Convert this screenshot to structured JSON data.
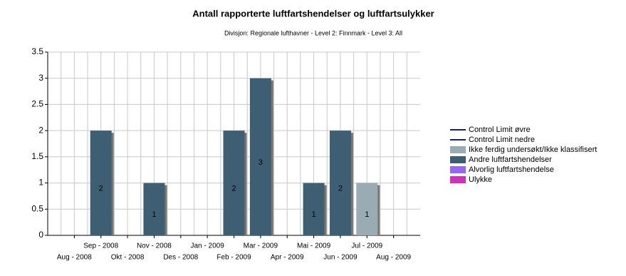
{
  "chart_data": {
    "type": "bar",
    "stacked": true,
    "title": "Antall rapporterte luftfartshendelser og luftfartsulykker",
    "subtitle": "Divisjon: Regionale lufthavner - Level 2: Finnmark - Level 3: All",
    "categories": [
      "Aug - 2008",
      "Sep - 2008",
      "Okt - 2008",
      "Nov - 2008",
      "Des - 2008",
      "Jan - 2009",
      "Feb - 2009",
      "Mar - 2009",
      "Apr - 2009",
      "Mai - 2009",
      "Jun - 2009",
      "Jul - 2009",
      "Aug - 2009"
    ],
    "series": [
      {
        "name": "Control Limit øvre",
        "color": "#1a1a8c",
        "style": "line",
        "values": [
          null,
          null,
          null,
          null,
          null,
          null,
          null,
          null,
          null,
          null,
          null,
          null,
          null
        ]
      },
      {
        "name": "Control Limit nedre",
        "color": "#1a1a8c",
        "style": "line",
        "values": [
          null,
          null,
          null,
          null,
          null,
          null,
          null,
          null,
          null,
          null,
          null,
          null,
          null
        ]
      },
      {
        "name": "Ikke ferdig undersøkt/Ikke klassifisert",
        "color": "#9aabb3",
        "values": [
          null,
          null,
          null,
          null,
          null,
          null,
          null,
          null,
          null,
          null,
          null,
          1,
          null
        ]
      },
      {
        "name": "Andre luftfartshendelser",
        "color": "#3e5f73",
        "values": [
          null,
          2,
          null,
          1,
          null,
          null,
          2,
          3,
          null,
          1,
          2,
          null,
          null
        ]
      },
      {
        "name": "Alvorlig luftfartshendelse",
        "color": "#9966ee",
        "values": [
          null,
          null,
          null,
          null,
          null,
          null,
          null,
          null,
          null,
          null,
          null,
          null,
          null
        ]
      },
      {
        "name": "Ulykke",
        "color": "#cc33bb",
        "values": [
          null,
          null,
          null,
          null,
          null,
          null,
          null,
          null,
          null,
          null,
          null,
          null,
          null
        ]
      }
    ],
    "ylim": [
      0,
      3.5
    ],
    "yticks": [
      0,
      0.5,
      1,
      1.5,
      2,
      2.5,
      3,
      3.5
    ],
    "grid": true,
    "legend": "right"
  }
}
